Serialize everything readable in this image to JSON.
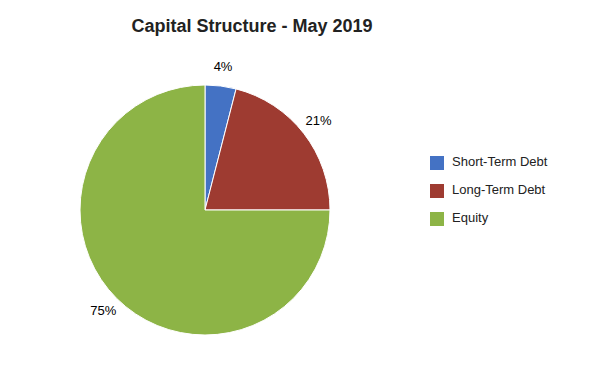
{
  "chart_data": {
    "type": "pie",
    "title": "Capital Structure - May 2019",
    "categories": [
      "Short-Term Debt",
      "Long-Term Debt",
      "Equity"
    ],
    "values": [
      4,
      21,
      75
    ],
    "value_labels": [
      "4%",
      "21%",
      "75%"
    ],
    "data_labels": true,
    "colors": [
      "#4472C4",
      "#9E3B31",
      "#8DB446"
    ],
    "legend": "right"
  }
}
